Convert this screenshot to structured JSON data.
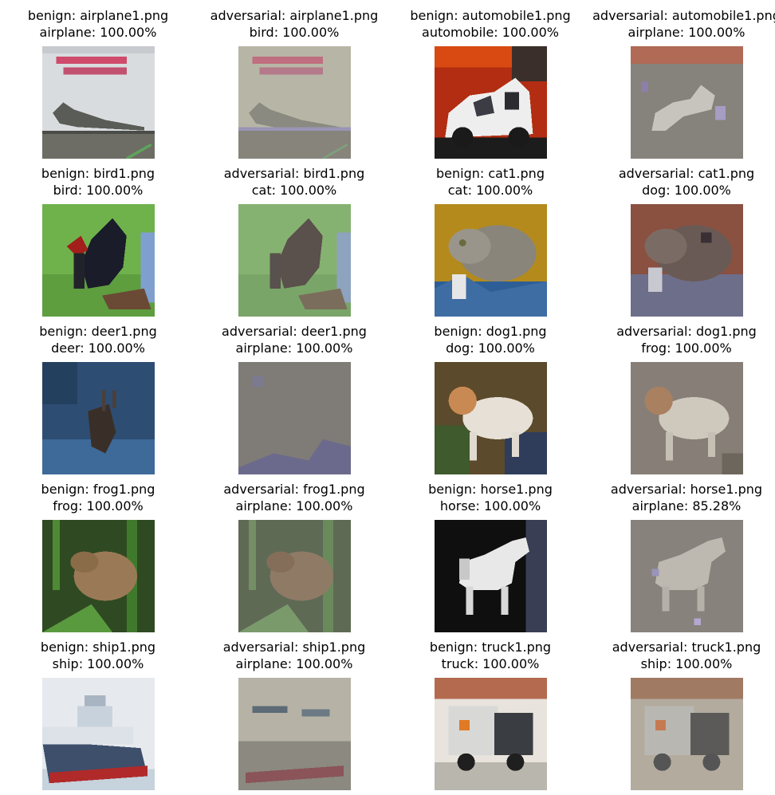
{
  "panels": [
    {
      "kind": "benign",
      "file": "airplane1.png",
      "label": "airplane",
      "conf": "100.00%",
      "scene": "airplane_b"
    },
    {
      "kind": "adversarial",
      "file": "airplane1.png",
      "label": "bird",
      "conf": "100.00%",
      "scene": "airplane_a"
    },
    {
      "kind": "benign",
      "file": "automobile1.png",
      "label": "automobile",
      "conf": "100.00%",
      "scene": "car_b"
    },
    {
      "kind": "adversarial",
      "file": "automobile1.png",
      "label": "airplane",
      "conf": "100.00%",
      "scene": "car_a"
    },
    {
      "kind": "benign",
      "file": "bird1.png",
      "label": "bird",
      "conf": "100.00%",
      "scene": "bird_b"
    },
    {
      "kind": "adversarial",
      "file": "bird1.png",
      "label": "cat",
      "conf": "100.00%",
      "scene": "bird_a"
    },
    {
      "kind": "benign",
      "file": "cat1.png",
      "label": "cat",
      "conf": "100.00%",
      "scene": "cat_b"
    },
    {
      "kind": "adversarial",
      "file": "cat1.png",
      "label": "dog",
      "conf": "100.00%",
      "scene": "cat_a"
    },
    {
      "kind": "benign",
      "file": "deer1.png",
      "label": "deer",
      "conf": "100.00%",
      "scene": "deer_b"
    },
    {
      "kind": "adversarial",
      "file": "deer1.png",
      "label": "airplane",
      "conf": "100.00%",
      "scene": "deer_a"
    },
    {
      "kind": "benign",
      "file": "dog1.png",
      "label": "dog",
      "conf": "100.00%",
      "scene": "dog_b"
    },
    {
      "kind": "adversarial",
      "file": "dog1.png",
      "label": "frog",
      "conf": "100.00%",
      "scene": "dog_a"
    },
    {
      "kind": "benign",
      "file": "frog1.png",
      "label": "frog",
      "conf": "100.00%",
      "scene": "frog_b"
    },
    {
      "kind": "adversarial",
      "file": "frog1.png",
      "label": "airplane",
      "conf": "100.00%",
      "scene": "frog_a"
    },
    {
      "kind": "benign",
      "file": "horse1.png",
      "label": "horse",
      "conf": "100.00%",
      "scene": "horse_b"
    },
    {
      "kind": "adversarial",
      "file": "horse1.png",
      "label": "airplane",
      "conf": "85.28%",
      "scene": "horse_a"
    },
    {
      "kind": "benign",
      "file": "ship1.png",
      "label": "ship",
      "conf": "100.00%",
      "scene": "ship_b"
    },
    {
      "kind": "adversarial",
      "file": "ship1.png",
      "label": "airplane",
      "conf": "100.00%",
      "scene": "ship_a"
    },
    {
      "kind": "benign",
      "file": "truck1.png",
      "label": "truck",
      "conf": "100.00%",
      "scene": "truck_b"
    },
    {
      "kind": "adversarial",
      "file": "truck1.png",
      "label": "ship",
      "conf": "100.00%",
      "scene": "truck_a"
    }
  ]
}
